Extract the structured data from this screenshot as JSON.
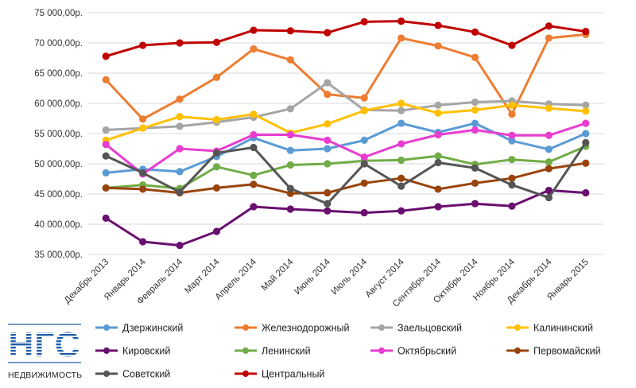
{
  "logo": {
    "brand": "НГС",
    "caption": "НЕДВИЖИМОСТЬ",
    "color": "#1f5fa8"
  },
  "chart_data": {
    "type": "line",
    "title": "",
    "xlabel": "",
    "ylabel": "",
    "ylim": [
      35000,
      75000
    ],
    "y_ticks": [
      "35 000,00р.",
      "40 000,00р.",
      "45 000,00р.",
      "50 000,00р.",
      "55 000,00р.",
      "60 000,00р.",
      "65 000,00р.",
      "70 000,00р.",
      "75 000,00р."
    ],
    "y_tick_values": [
      35000,
      40000,
      45000,
      50000,
      55000,
      60000,
      65000,
      70000,
      75000
    ],
    "grid": true,
    "legend_position": "bottom",
    "categories": [
      "Декабрь 2013",
      "Январь 2014",
      "Февраль 2014",
      "Март 2014",
      "Апрель 2014",
      "Май 2014",
      "Июнь 2014",
      "Июль 2014",
      "Август 2014",
      "Сентябрь 2014",
      "Октябрь 2014",
      "Ноябрь 2014",
      "Декабрь 2014",
      "Январь 2015"
    ],
    "series": [
      {
        "name": "Дзержинский",
        "color": "#5b9bd5",
        "values": [
          48500,
          49100,
          48700,
          51200,
          54300,
          52200,
          52500,
          53900,
          56700,
          55200,
          56700,
          53800,
          52400,
          55000
        ]
      },
      {
        "name": "Железнодорожный",
        "color": "#ed7d31",
        "values": [
          63900,
          57400,
          60700,
          64300,
          69000,
          67200,
          61500,
          60900,
          70800,
          69500,
          67600,
          58200,
          70800,
          71400
        ]
      },
      {
        "name": "Заельцовский",
        "color": "#a5a5a5",
        "values": [
          55600,
          55900,
          56200,
          56900,
          57700,
          59100,
          63400,
          58900,
          58800,
          59700,
          60200,
          60400,
          59900,
          59700
        ]
      },
      {
        "name": "Калининский",
        "color": "#ffc000",
        "values": [
          53900,
          55900,
          57800,
          57300,
          58200,
          55100,
          56600,
          58800,
          60000,
          58400,
          58900,
          59700,
          59200,
          58700
        ]
      },
      {
        "name": "Кировский",
        "color": "#6a0f6f",
        "values": [
          41000,
          37100,
          36500,
          38800,
          42900,
          42500,
          42200,
          41900,
          42200,
          42900,
          43400,
          43000,
          45600,
          45200
        ]
      },
      {
        "name": "Ленинский",
        "color": "#70ad47",
        "values": [
          46000,
          46500,
          45900,
          49500,
          48100,
          49800,
          50000,
          50500,
          50600,
          51300,
          49900,
          50700,
          50300,
          52900
        ]
      },
      {
        "name": "Октябрьский",
        "color": "#e83dd0",
        "values": [
          53200,
          48300,
          52500,
          52100,
          54800,
          54800,
          53900,
          51100,
          53300,
          54800,
          55600,
          54700,
          54700,
          56700
        ]
      },
      {
        "name": "Первомайский",
        "color": "#99440b",
        "values": [
          46000,
          45800,
          45200,
          46000,
          46600,
          45100,
          45200,
          46800,
          47600,
          45800,
          46800,
          47600,
          49200,
          50100
        ]
      },
      {
        "name": "Советский",
        "color": "#555555",
        "values": [
          51300,
          48500,
          45300,
          51800,
          52700,
          45900,
          43400,
          50000,
          46300,
          50200,
          49300,
          46500,
          44400,
          53500
        ]
      },
      {
        "name": "Центральный",
        "color": "#c00000",
        "values": [
          67800,
          69600,
          70000,
          70100,
          72100,
          72000,
          71700,
          73500,
          73600,
          72900,
          71800,
          69600,
          72800,
          71900
        ]
      }
    ]
  }
}
